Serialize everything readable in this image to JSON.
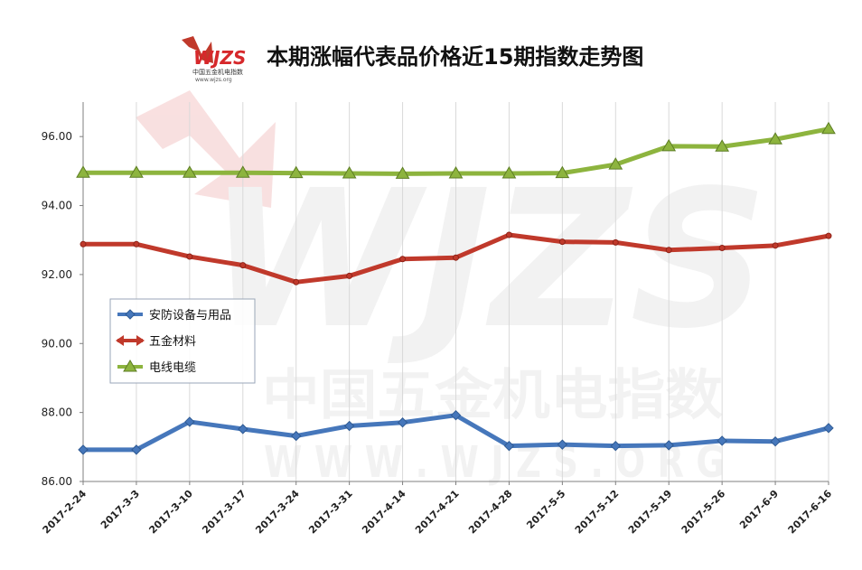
{
  "header": {
    "title": "本期涨幅代表品价格近15期指数走势图",
    "logo_text": "WJZS",
    "logo_sub_cn": "中国五金机电指数",
    "logo_sub_url": "www.wjzs.org"
  },
  "watermark": {
    "logo_text": "WJZS",
    "text_cn": "中国五金机电指数",
    "text_url": "W W W . W J Z S . O R G"
  },
  "chart_data": {
    "type": "line",
    "categories": [
      "2017-2-24",
      "2017-3-3",
      "2017-3-10",
      "2017-3-17",
      "2017-3-24",
      "2017-3-31",
      "2017-4-14",
      "2017-4-21",
      "2017-4-28",
      "2017-5-5",
      "2017-5-12",
      "2017-5-19",
      "2017-5-26",
      "2017-6-9",
      "2017-6-16"
    ],
    "ylim": [
      86,
      97
    ],
    "yticks": [
      "86.00",
      "88.00",
      "90.00",
      "92.00",
      "94.00",
      "96.00"
    ],
    "ytick_values": [
      86,
      88,
      90,
      92,
      94,
      96
    ],
    "grid": "vertical",
    "legend_position": "left-middle",
    "series": [
      {
        "name": "安防设备与用品",
        "color": "#4677bb",
        "marker": "diamond",
        "values": [
          86.92,
          86.92,
          87.73,
          87.52,
          87.32,
          87.61,
          87.71,
          87.92,
          87.03,
          87.07,
          87.03,
          87.05,
          87.18,
          87.16,
          87.55
        ]
      },
      {
        "name": "五金材料",
        "color": "#c0392b",
        "marker": "arrow",
        "values": [
          92.88,
          92.88,
          92.52,
          92.27,
          91.78,
          91.96,
          92.45,
          92.49,
          93.15,
          92.95,
          92.93,
          92.71,
          92.77,
          92.84,
          93.12
        ]
      },
      {
        "name": "电线电缆",
        "color": "#8db43e",
        "marker": "triangle",
        "values": [
          94.95,
          94.95,
          94.95,
          94.95,
          94.94,
          94.93,
          94.92,
          94.93,
          94.93,
          94.94,
          95.19,
          95.72,
          95.71,
          95.92,
          96.22
        ]
      }
    ]
  }
}
